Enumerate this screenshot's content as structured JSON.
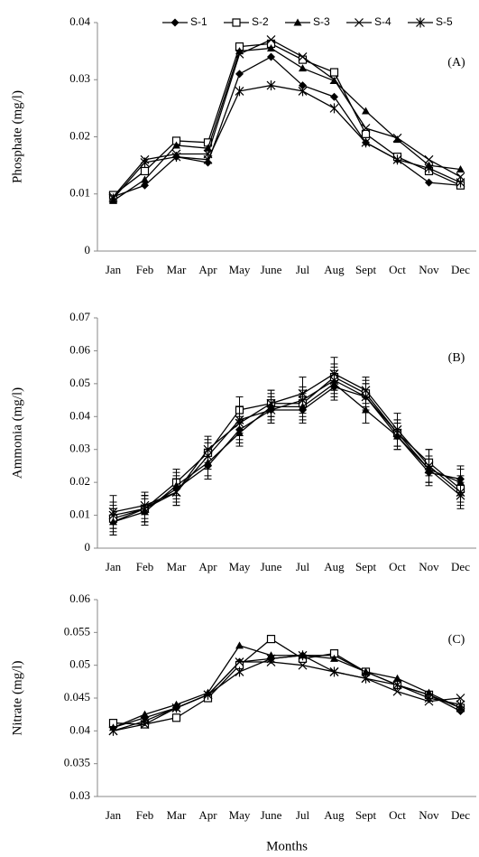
{
  "chart_data": [
    {
      "type": "line",
      "label": "(A)",
      "ylabel": "Phosphate (mg/l)",
      "categories": [
        "Jan",
        "Feb",
        "Mar",
        "Apr",
        "May",
        "June",
        "Jul",
        "Aug",
        "Sept",
        "Oct",
        "Nov",
        "Dec"
      ],
      "ylim": [
        0,
        0.04
      ],
      "yticks": [
        0,
        0.01,
        0.02,
        0.03,
        0.04
      ],
      "series": [
        {
          "name": "S-1",
          "color": "#000000",
          "marker": "diamond",
          "values": [
            0.0095,
            0.0115,
            0.0165,
            0.0155,
            0.031,
            0.034,
            0.029,
            0.027,
            0.019,
            0.016,
            0.012,
            0.0115
          ]
        },
        {
          "name": "S-2",
          "color": "#000000",
          "marker": "square",
          "values": [
            0.0098,
            0.014,
            0.0193,
            0.019,
            0.0358,
            0.0363,
            0.0335,
            0.0313,
            0.0205,
            0.0165,
            0.014,
            0.0115
          ]
        },
        {
          "name": "S-3",
          "color": "#000000",
          "marker": "triangle",
          "values": [
            0.0088,
            0.0125,
            0.0185,
            0.018,
            0.035,
            0.0355,
            0.032,
            0.0298,
            0.0245,
            0.0195,
            0.015,
            0.0143
          ]
        },
        {
          "name": "S-4",
          "color": "#000000",
          "marker": "x",
          "values": [
            0.0095,
            0.016,
            0.017,
            0.017,
            0.0345,
            0.037,
            0.034,
            0.03,
            0.0215,
            0.0198,
            0.016,
            0.013
          ]
        },
        {
          "name": "S-5",
          "color": "#000000",
          "marker": "star",
          "values": [
            0.0092,
            0.0155,
            0.0165,
            0.016,
            0.028,
            0.029,
            0.028,
            0.025,
            0.019,
            0.016,
            0.0145,
            0.012
          ]
        }
      ]
    },
    {
      "type": "line",
      "label": "(B)",
      "ylabel": "Ammonia  (mg/l)",
      "categories": [
        "Jan",
        "Feb",
        "Mar",
        "Apr",
        "May",
        "June",
        "Jul",
        "Aug",
        "Sept",
        "Oct",
        "Nov",
        "Dec"
      ],
      "ylim": [
        0,
        0.07
      ],
      "yticks": [
        0,
        0.01,
        0.02,
        0.03,
        0.04,
        0.05,
        0.06,
        0.07
      ],
      "series": [
        {
          "color": "#000000",
          "marker": "diamond",
          "values": [
            0.008,
            0.012,
            0.018,
            0.025,
            0.036,
            0.042,
            0.042,
            0.049,
            0.046,
            0.034,
            0.023,
            0.021
          ],
          "errors": [
            0.004,
            0.004,
            0.004,
            0.004,
            0.004,
            0.004,
            0.004,
            0.004,
            0.004,
            0.004,
            0.004,
            0.004
          ]
        },
        {
          "color": "#000000",
          "marker": "square",
          "values": [
            0.009,
            0.012,
            0.02,
            0.029,
            0.042,
            0.044,
            0.044,
            0.052,
            0.047,
            0.035,
            0.026,
            0.018
          ],
          "errors": [
            0.004,
            0.004,
            0.004,
            0.004,
            0.004,
            0.004,
            0.004,
            0.004,
            0.004,
            0.004,
            0.004,
            0.004
          ]
        },
        {
          "color": "#000000",
          "marker": "triangle",
          "values": [
            0.008,
            0.011,
            0.019,
            0.026,
            0.035,
            0.043,
            0.043,
            0.05,
            0.042,
            0.034,
            0.024,
            0.02
          ],
          "errors": [
            0.004,
            0.004,
            0.004,
            0.004,
            0.004,
            0.004,
            0.004,
            0.004,
            0.004,
            0.004,
            0.004,
            0.004
          ]
        },
        {
          "color": "#000000",
          "marker": "x",
          "values": [
            0.011,
            0.013,
            0.017,
            0.03,
            0.038,
            0.044,
            0.047,
            0.053,
            0.048,
            0.036,
            0.025,
            0.017
          ],
          "errors": [
            0.005,
            0.004,
            0.004,
            0.004,
            0.005,
            0.004,
            0.005,
            0.005,
            0.004,
            0.005,
            0.005,
            0.004
          ]
        },
        {
          "color": "#000000",
          "marker": "star",
          "values": [
            0.01,
            0.012,
            0.017,
            0.028,
            0.039,
            0.042,
            0.045,
            0.051,
            0.046,
            0.035,
            0.024,
            0.016
          ],
          "errors": [
            0.004,
            0.004,
            0.004,
            0.004,
            0.004,
            0.004,
            0.004,
            0.004,
            0.004,
            0.004,
            0.004,
            0.004
          ]
        }
      ]
    },
    {
      "type": "line",
      "label": "(C)",
      "ylabel": "Nitrate (mg/l)",
      "xlabel": "Months",
      "categories": [
        "Jan",
        "Feb",
        "Mar",
        "Apr",
        "May",
        "June",
        "Jul",
        "Aug",
        "Sept",
        "Oct",
        "Nov",
        "Dec"
      ],
      "ylim": [
        0.03,
        0.06
      ],
      "yticks": [
        0.03,
        0.035,
        0.04,
        0.045,
        0.05,
        0.055,
        0.06
      ],
      "series": [
        {
          "color": "#000000",
          "marker": "diamond",
          "values": [
            0.0405,
            0.042,
            0.0435,
            0.0455,
            0.0505,
            0.051,
            0.0515,
            0.0515,
            0.049,
            0.047,
            0.0455,
            0.043
          ]
        },
        {
          "color": "#000000",
          "marker": "square",
          "values": [
            0.0412,
            0.041,
            0.042,
            0.045,
            0.05,
            0.054,
            0.051,
            0.0518,
            0.049,
            0.047,
            0.0455,
            0.0435
          ]
        },
        {
          "color": "#000000",
          "marker": "triangle",
          "values": [
            0.0405,
            0.0425,
            0.044,
            0.0458,
            0.053,
            0.0515,
            0.0515,
            0.051,
            0.049,
            0.048,
            0.0458,
            0.0435
          ]
        },
        {
          "color": "#000000",
          "marker": "x",
          "values": [
            0.04,
            0.041,
            0.0435,
            0.0455,
            0.0505,
            0.0505,
            0.05,
            0.049,
            0.048,
            0.046,
            0.0445,
            0.045
          ]
        },
        {
          "color": "#000000",
          "marker": "star",
          "values": [
            0.04,
            0.0415,
            0.0435,
            0.0455,
            0.049,
            0.051,
            0.0515,
            0.049,
            0.048,
            0.047,
            0.045,
            0.044
          ]
        }
      ]
    }
  ]
}
